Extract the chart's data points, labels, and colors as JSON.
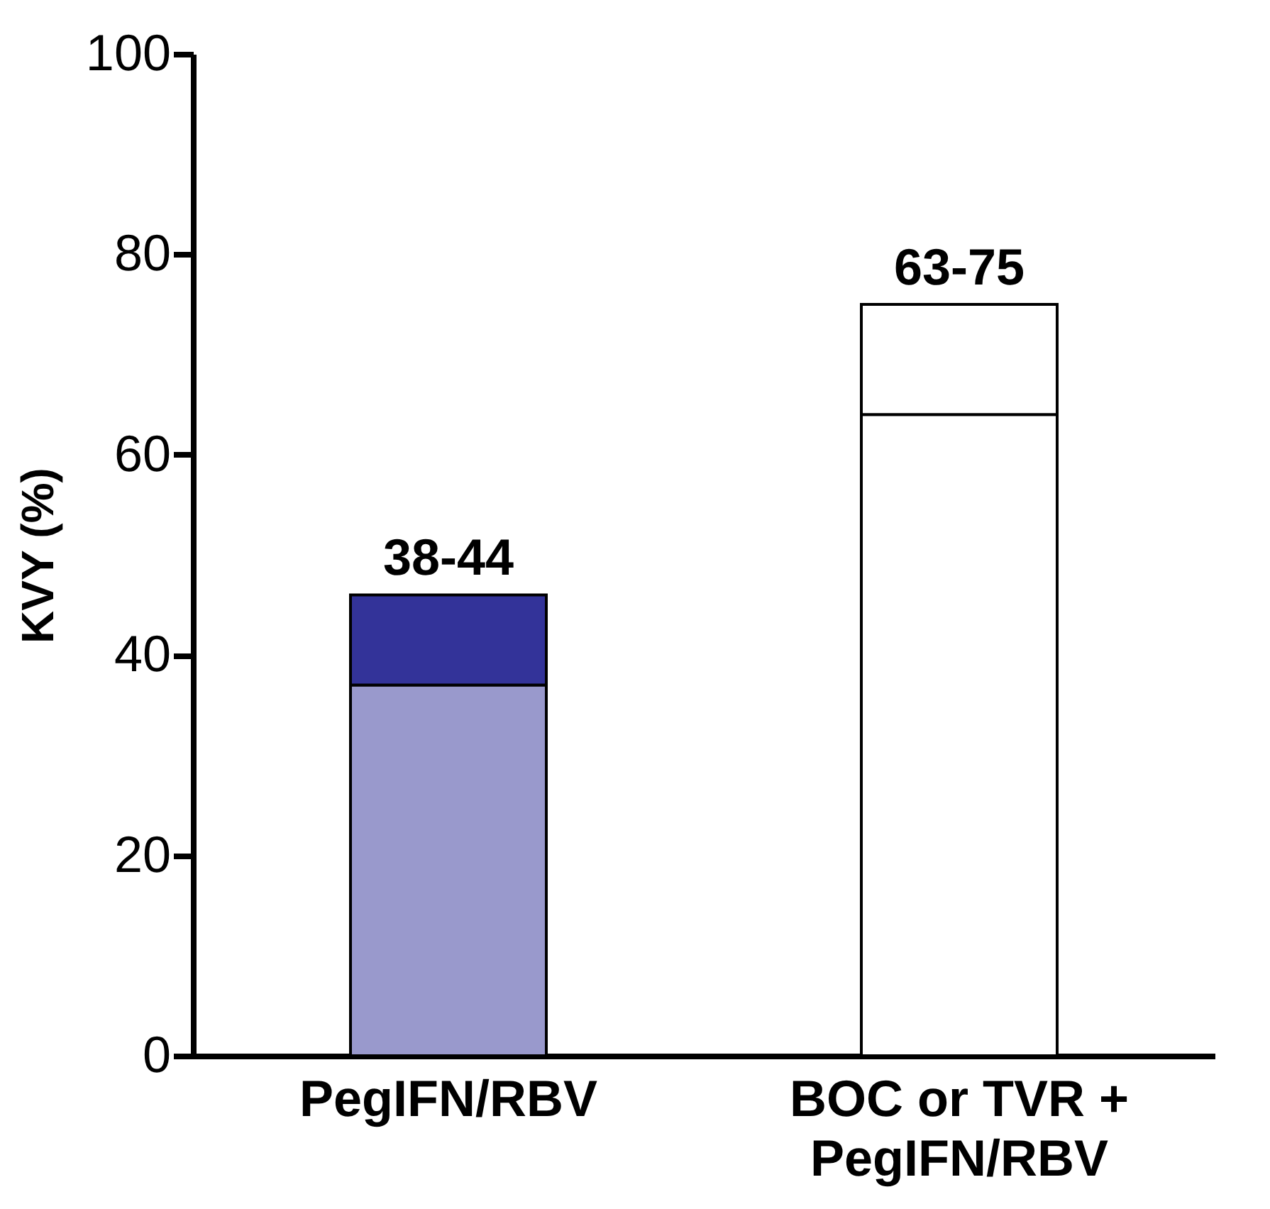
{
  "chart_data": {
    "type": "bar",
    "stacked": true,
    "ylabel": "KVY (%)",
    "categories": [
      "PegIFN/RBV",
      "BOC or TVR +\nPegIFN/RBV"
    ],
    "series": [
      {
        "colors": [
          "#9999cc",
          "#ffffff"
        ],
        "values": [
          37,
          64
        ]
      },
      {
        "colors": [
          "#333399",
          "#ffffff"
        ],
        "values": [
          9,
          11
        ]
      }
    ],
    "ylim": [
      0,
      100
    ],
    "yticks": [
      0,
      20,
      40,
      60,
      80,
      100
    ],
    "grid": false,
    "legend": false,
    "annotations": [
      {
        "text": "38-44",
        "x": "PegIFN/RBV",
        "y": 46
      },
      {
        "text": "63-75",
        "x": "BOC or TVR +\nPegIFN/RBV",
        "y": 75
      }
    ]
  }
}
